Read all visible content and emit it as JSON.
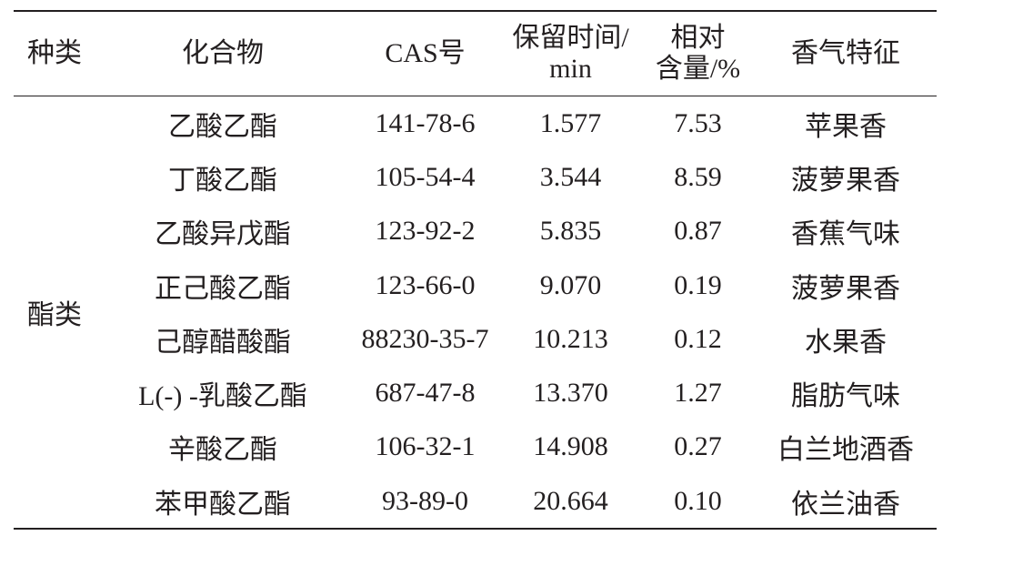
{
  "table": {
    "columns": [
      [
        "种类"
      ],
      [
        "化合物"
      ],
      [
        "CAS号"
      ],
      [
        "保留时间/",
        "min"
      ],
      [
        "相对",
        "含量/%"
      ],
      [
        "香气特征"
      ]
    ],
    "group": "酯类",
    "rows": [
      [
        "乙酸乙酯",
        "141-78-6",
        "1.577",
        "7.53",
        "苹果香"
      ],
      [
        "丁酸乙酯",
        "105-54-4",
        "3.544",
        "8.59",
        "菠萝果香"
      ],
      [
        "乙酸异戊酯",
        "123-92-2",
        "5.835",
        "0.87",
        "香蕉气味"
      ],
      [
        "正己酸乙酯",
        "123-66-0",
        "9.070",
        "0.19",
        "菠萝果香"
      ],
      [
        "己醇醋酸酯",
        "88230-35-7",
        "10.213",
        "0.12",
        "水果香"
      ],
      [
        "L(-) -乳酸乙酯",
        "687-47-8",
        "13.370",
        "1.27",
        "脂肪气味"
      ],
      [
        "辛酸乙酯",
        "106-32-1",
        "14.908",
        "0.27",
        "白兰地酒香"
      ],
      [
        "苯甲酸乙酯",
        "93-89-0",
        "20.664",
        "0.10",
        "依兰油香"
      ]
    ]
  }
}
